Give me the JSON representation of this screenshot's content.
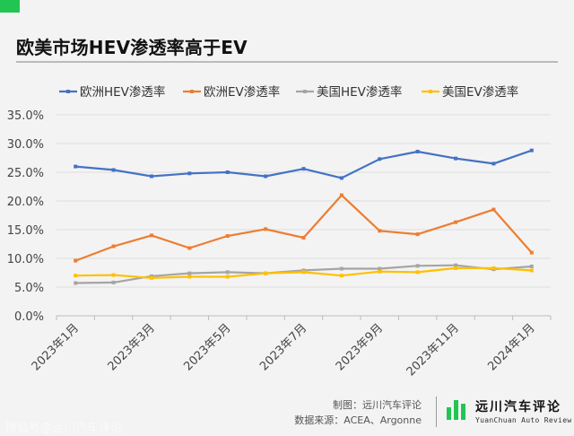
{
  "chart_data": {
    "type": "line",
    "title": "欧美市场HEV渗透率高于EV",
    "categories": [
      "2023年1月",
      "2023年2月",
      "2023年3月",
      "2023年4月",
      "2023年5月",
      "2023年6月",
      "2023年7月",
      "2023年8月",
      "2023年9月",
      "2023年10月",
      "2023年11月",
      "2023年12月",
      "2024年1月"
    ],
    "tick_labels": [
      "2023年1月",
      "2023年3月",
      "2023年5月",
      "2023年7月",
      "2023年9月",
      "2023年11月",
      "2024年1月"
    ],
    "y_tick_labels": [
      "0.0%",
      "5.0%",
      "10.0%",
      "15.0%",
      "20.0%",
      "25.0%",
      "30.0%",
      "35.0%"
    ],
    "ylim": [
      0,
      35
    ],
    "y_unit": "%",
    "grid": true,
    "legend_position": "top",
    "series": [
      {
        "name": "欧洲HEV渗透率",
        "color": "#4472c4",
        "values": [
          26.0,
          25.4,
          24.3,
          24.8,
          25.0,
          24.3,
          25.6,
          24.0,
          27.3,
          28.6,
          27.4,
          26.5,
          28.8
        ]
      },
      {
        "name": "欧洲EV渗透率",
        "color": "#ed7d31",
        "values": [
          9.6,
          12.1,
          14.0,
          11.8,
          13.9,
          15.1,
          13.6,
          21.0,
          14.8,
          14.2,
          16.3,
          18.5,
          11.0
        ]
      },
      {
        "name": "美国HEV渗透率",
        "color": "#a5a5a5",
        "values": [
          5.7,
          5.8,
          6.9,
          7.4,
          7.6,
          7.4,
          7.9,
          8.2,
          8.2,
          8.7,
          8.8,
          8.1,
          8.6
        ]
      },
      {
        "name": "美国EV渗透率",
        "color": "#ffc000",
        "values": [
          7.0,
          7.1,
          6.6,
          6.8,
          6.8,
          7.4,
          7.6,
          7.0,
          7.7,
          7.6,
          8.3,
          8.3,
          7.9
        ]
      }
    ]
  },
  "footer": {
    "made_by": "制图：远川汽车评论",
    "source": "数据来源：ACEA、Argonne"
  },
  "brand": {
    "name": "远川汽车评论",
    "sub": "YuanChuan Auto Review"
  },
  "watermark": "搜狐号@远川汽车评论"
}
